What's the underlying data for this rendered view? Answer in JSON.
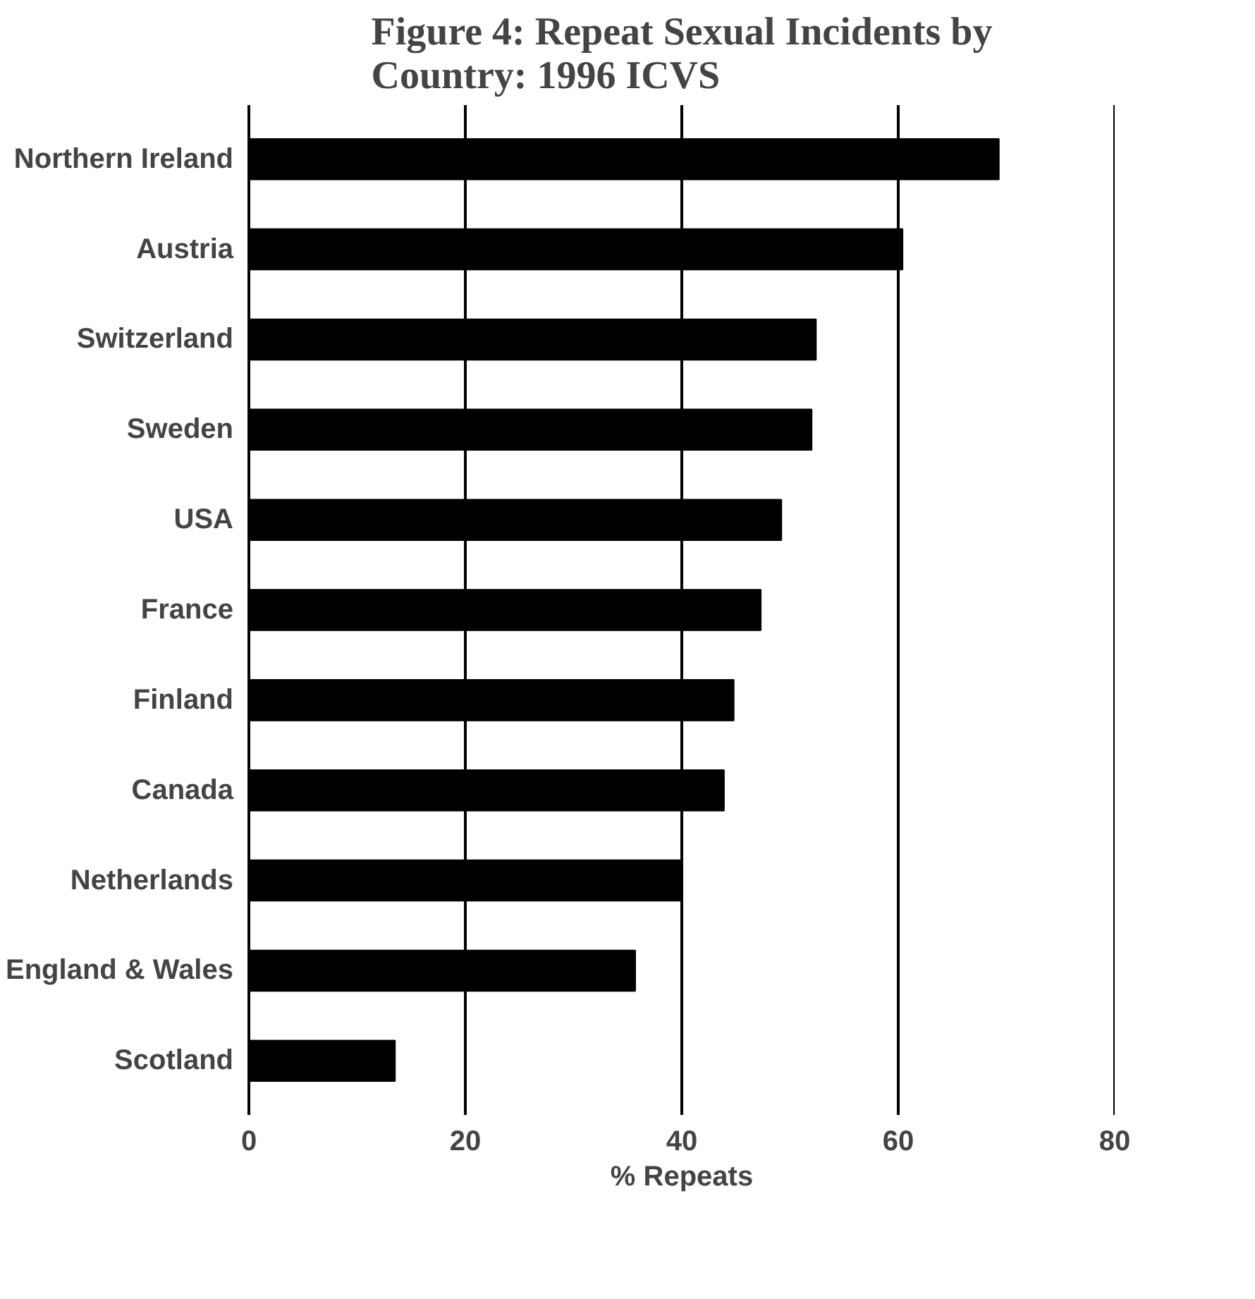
{
  "chart_data": {
    "type": "bar",
    "orientation": "horizontal",
    "title": "Figure 4: Repeat Sexual Incidents by Country: 1996 ICVS",
    "xlabel": "% Repeats",
    "categories": [
      "Northern Ireland",
      "Austria",
      "Switzerland",
      "Sweden",
      "USA",
      "France",
      "Finland",
      "Canada",
      "Netherlands",
      "England & Wales",
      "Scotland"
    ],
    "values": [
      69.3,
      60.4,
      52.4,
      52,
      49.2,
      47.3,
      44.8,
      43.9,
      40,
      35.7,
      13.5
    ],
    "color": "#000000",
    "xlim": [
      0,
      80
    ],
    "xticks": [
      0,
      20,
      40,
      60,
      80
    ],
    "grid": "x"
  }
}
